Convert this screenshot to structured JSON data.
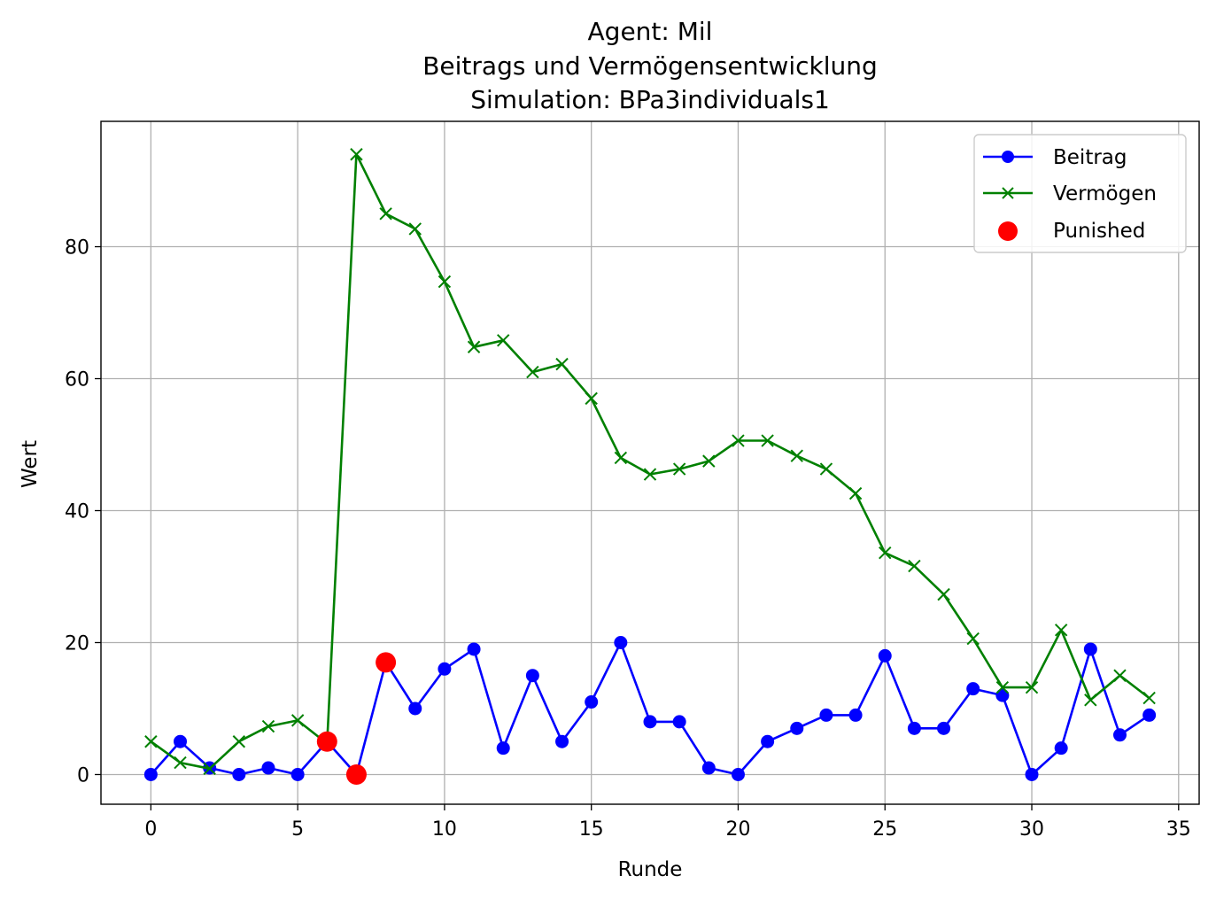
{
  "chart_data": {
    "type": "line",
    "title_lines": [
      "Agent: Mil",
      "Beitrags und Vermögensentwicklung",
      "Simulation: BPa3individuals1"
    ],
    "xlabel": "Runde",
    "ylabel": "Wert",
    "xlim": [
      -1.7,
      35.7
    ],
    "ylim": [
      -4.5,
      99
    ],
    "xticks": [
      0,
      5,
      10,
      15,
      20,
      25,
      30,
      35
    ],
    "yticks": [
      0,
      20,
      40,
      60,
      80
    ],
    "grid": true,
    "legend_position": "top-right",
    "x": [
      0,
      1,
      2,
      3,
      4,
      5,
      6,
      7,
      8,
      9,
      10,
      11,
      12,
      13,
      14,
      15,
      16,
      17,
      18,
      19,
      20,
      21,
      22,
      23,
      24,
      25,
      26,
      27,
      28,
      29,
      30,
      31,
      32,
      33,
      34
    ],
    "series": [
      {
        "name": "Beitrag",
        "color": "#0000ff",
        "marker": "circle",
        "values": [
          0,
          5,
          1,
          0,
          1,
          0,
          5,
          0,
          17,
          10,
          16,
          19,
          4,
          15,
          5,
          11,
          20,
          8,
          8,
          1,
          0,
          5,
          7,
          9,
          9,
          18,
          7,
          7,
          13,
          12,
          0,
          4,
          19,
          6,
          9
        ]
      },
      {
        "name": "Vermögen",
        "color": "#008000",
        "marker": "x",
        "values": [
          5,
          1.8,
          0.9,
          5,
          7.3,
          8.2,
          4.7,
          94,
          85,
          82.7,
          74.7,
          64.8,
          65.8,
          61,
          62.2,
          57,
          48,
          45.5,
          46.3,
          47.5,
          50.6,
          50.6,
          48.3,
          46.3,
          42.6,
          33.6,
          31.6,
          27.3,
          20.6,
          13.2,
          13.2,
          21.9,
          11.3,
          15,
          11.6
        ]
      }
    ],
    "punished": {
      "name": "Punished",
      "color": "#ff0000",
      "points": [
        [
          6,
          5
        ],
        [
          7,
          0
        ],
        [
          8,
          17
        ]
      ]
    }
  }
}
